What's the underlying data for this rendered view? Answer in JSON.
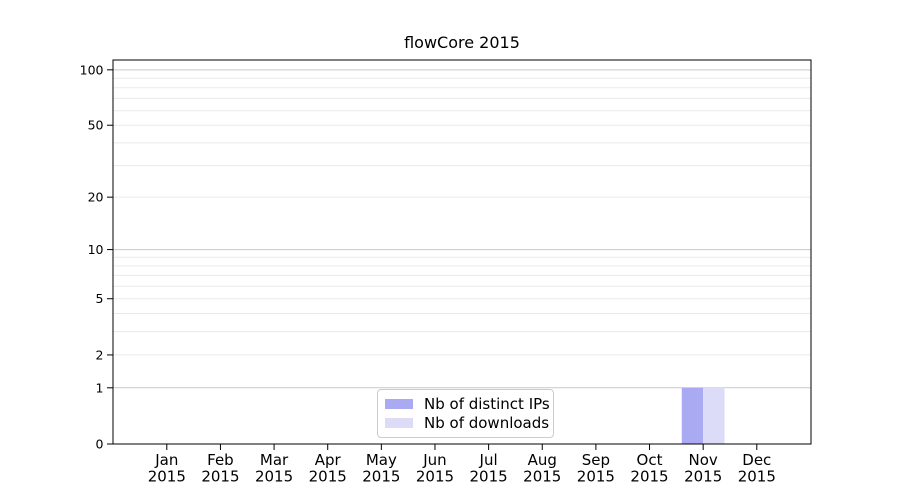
{
  "chart_data": {
    "type": "bar",
    "title": "flowCore 2015",
    "categories": [
      "Jan 2015",
      "Feb 2015",
      "Mar 2015",
      "Apr 2015",
      "May 2015",
      "Jun 2015",
      "Jul 2015",
      "Aug 2015",
      "Sep 2015",
      "Oct 2015",
      "Nov 2015",
      "Dec 2015"
    ],
    "series": [
      {
        "name": "Nb of distinct IPs",
        "color": "#aaaaf2",
        "values": [
          0,
          0,
          0,
          0,
          0,
          0,
          0,
          0,
          0,
          0,
          1,
          0
        ]
      },
      {
        "name": "Nb of downloads",
        "color": "#dcdcf8",
        "values": [
          0,
          0,
          0,
          0,
          0,
          0,
          0,
          0,
          0,
          0,
          1,
          0
        ]
      }
    ],
    "xlabel": "",
    "ylabel": "",
    "yscale": "log1p",
    "yticks": [
      0,
      1,
      2,
      5,
      10,
      20,
      50,
      100
    ],
    "ylim": [
      0,
      113
    ],
    "grid": "horizontal, major and minor log lines",
    "legend_position": "lower center inside"
  },
  "style": {
    "background": "#ffffff",
    "axis_color": "#000000",
    "text_color": "#000000",
    "major_gridline_color": "#c9c9c9",
    "minor_gridline_color": "#eaeaea",
    "legend_border_color": "#cccccc",
    "bar_color_distinct_ips": "#aaaaf2",
    "bar_color_downloads": "#dcdcf8"
  }
}
